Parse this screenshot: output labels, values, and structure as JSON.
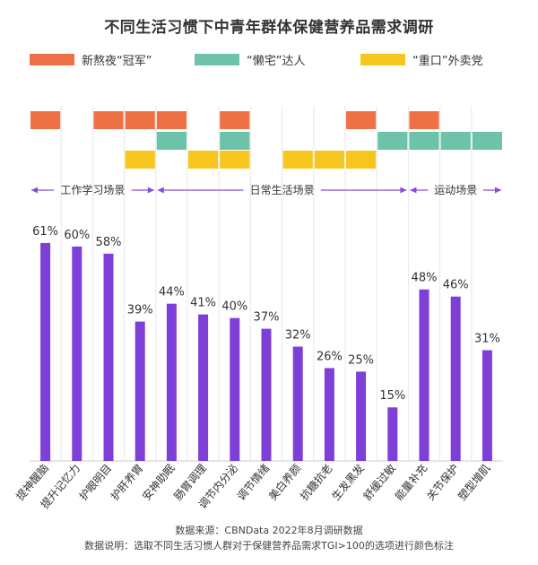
{
  "title": "不同生活习惯下中青年群体保健营养品需求调研",
  "colors": {
    "bar": "#7e3fd9",
    "orange": "#ee7145",
    "teal": "#6cc3aa",
    "yellow": "#f7c61e",
    "arrow": "#8a4bd6"
  },
  "legend": [
    {
      "key": "orange",
      "label": "新熬夜“冠军”",
      "color": "#ee7145"
    },
    {
      "key": "teal",
      "label": "“懒宅”达人",
      "color": "#6cc3aa"
    },
    {
      "key": "yellow",
      "label": "“重口”外卖党",
      "color": "#f7c61e"
    }
  ],
  "scenes": [
    {
      "label": "工作学习场景",
      "start": 0,
      "end": 3
    },
    {
      "label": "日常生活场景",
      "start": 4,
      "end": 11
    },
    {
      "label": "运动场景",
      "start": 12,
      "end": 14
    }
  ],
  "chart_data": {
    "type": "bar",
    "categories": [
      "提神醒脑",
      "提升记忆力",
      "护眼明目",
      "护肝养胃",
      "安神助眠",
      "肠胃调理",
      "调节内分泌",
      "调节情绪",
      "美白养颜",
      "抗糖抗老",
      "生发黑发",
      "舒缓过敏",
      "能量补充",
      "关节保护",
      "塑型增肌"
    ],
    "values": [
      61,
      60,
      58,
      39,
      44,
      41,
      40,
      37,
      32,
      26,
      25,
      15,
      48,
      46,
      31
    ],
    "value_labels": [
      "61%",
      "60%",
      "58%",
      "39%",
      "44%",
      "41%",
      "40%",
      "37%",
      "32%",
      "26%",
      "25%",
      "15%",
      "48%",
      "46%",
      "31%"
    ],
    "ylim": [
      0,
      65
    ],
    "highlight": {
      "orange": [
        0,
        2,
        3,
        4,
        6,
        10,
        12
      ],
      "teal": [
        4,
        6,
        11,
        12,
        13,
        14
      ],
      "yellow": [
        3,
        5,
        6,
        8,
        9,
        10
      ]
    }
  },
  "footer": {
    "source": "数据来源：CBNData 2022年8月调研数据",
    "note": "数据说明：选取不同生活习惯人群对于保健营养品需求TGI>100的选项进行颜色标注"
  }
}
